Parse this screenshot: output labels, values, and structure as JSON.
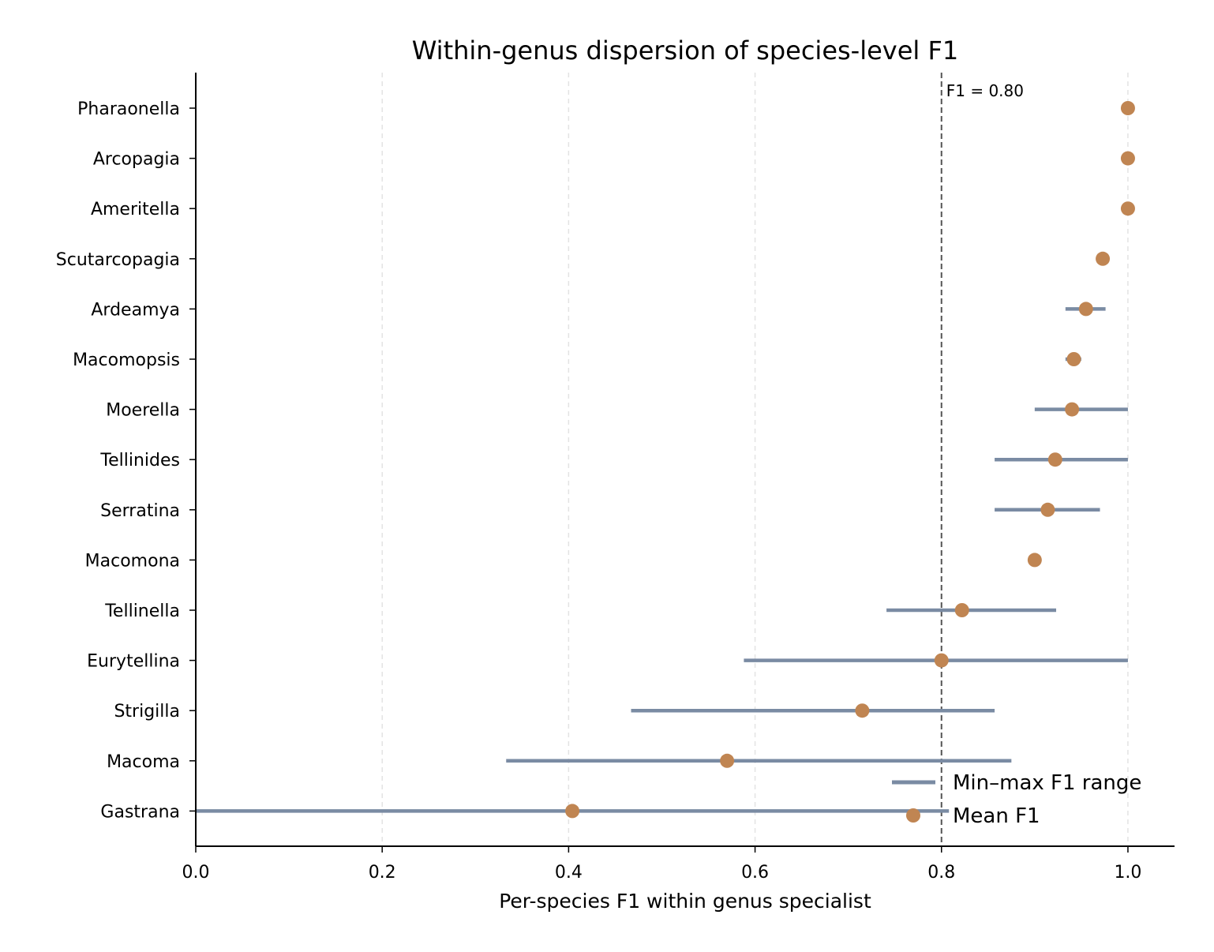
{
  "chart_data": {
    "type": "dot-range",
    "title": "Within-genus dispersion of species-level F1",
    "xlabel": "Per-species F1 within genus specialist",
    "ylabel": "",
    "xlim": [
      0.0,
      1.05
    ],
    "xticks": [
      "0.0",
      "0.2",
      "0.4",
      "0.6",
      "0.8",
      "1.0"
    ],
    "xtick_values": [
      0.0,
      0.2,
      0.4,
      0.6,
      0.8,
      1.0
    ],
    "grid": "vertical dashed",
    "reference_line": {
      "value": 0.8,
      "label": "F1 = 0.80"
    },
    "categories": [
      "Pharaonella",
      "Arcopagia",
      "Ameritella",
      "Scutarcopagia",
      "Ardeamya",
      "Macomopsis",
      "Moerella",
      "Tellinides",
      "Serratina",
      "Macomona",
      "Tellinella",
      "Eurytellina",
      "Strigilla",
      "Macoma",
      "Gastrana"
    ],
    "series": [
      {
        "name": "Min–max F1 range",
        "kind": "range",
        "color": "#7a8ba3",
        "min": [
          1.0,
          1.0,
          1.0,
          0.974,
          0.933,
          0.933,
          0.9,
          0.857,
          0.857,
          0.9,
          0.741,
          0.588,
          0.467,
          0.333,
          0.0
        ],
        "max": [
          1.0,
          1.0,
          1.0,
          0.974,
          0.976,
          0.95,
          1.0,
          1.0,
          0.97,
          0.9,
          0.923,
          1.0,
          0.857,
          0.875,
          0.808
        ]
      },
      {
        "name": "Mean F1",
        "kind": "point",
        "color": "#c08552",
        "values": [
          1.0,
          1.0,
          1.0,
          0.973,
          0.955,
          0.942,
          0.94,
          0.922,
          0.914,
          0.9,
          0.822,
          0.8,
          0.715,
          0.57,
          0.404
        ]
      }
    ],
    "legend_position": "lower-right"
  }
}
